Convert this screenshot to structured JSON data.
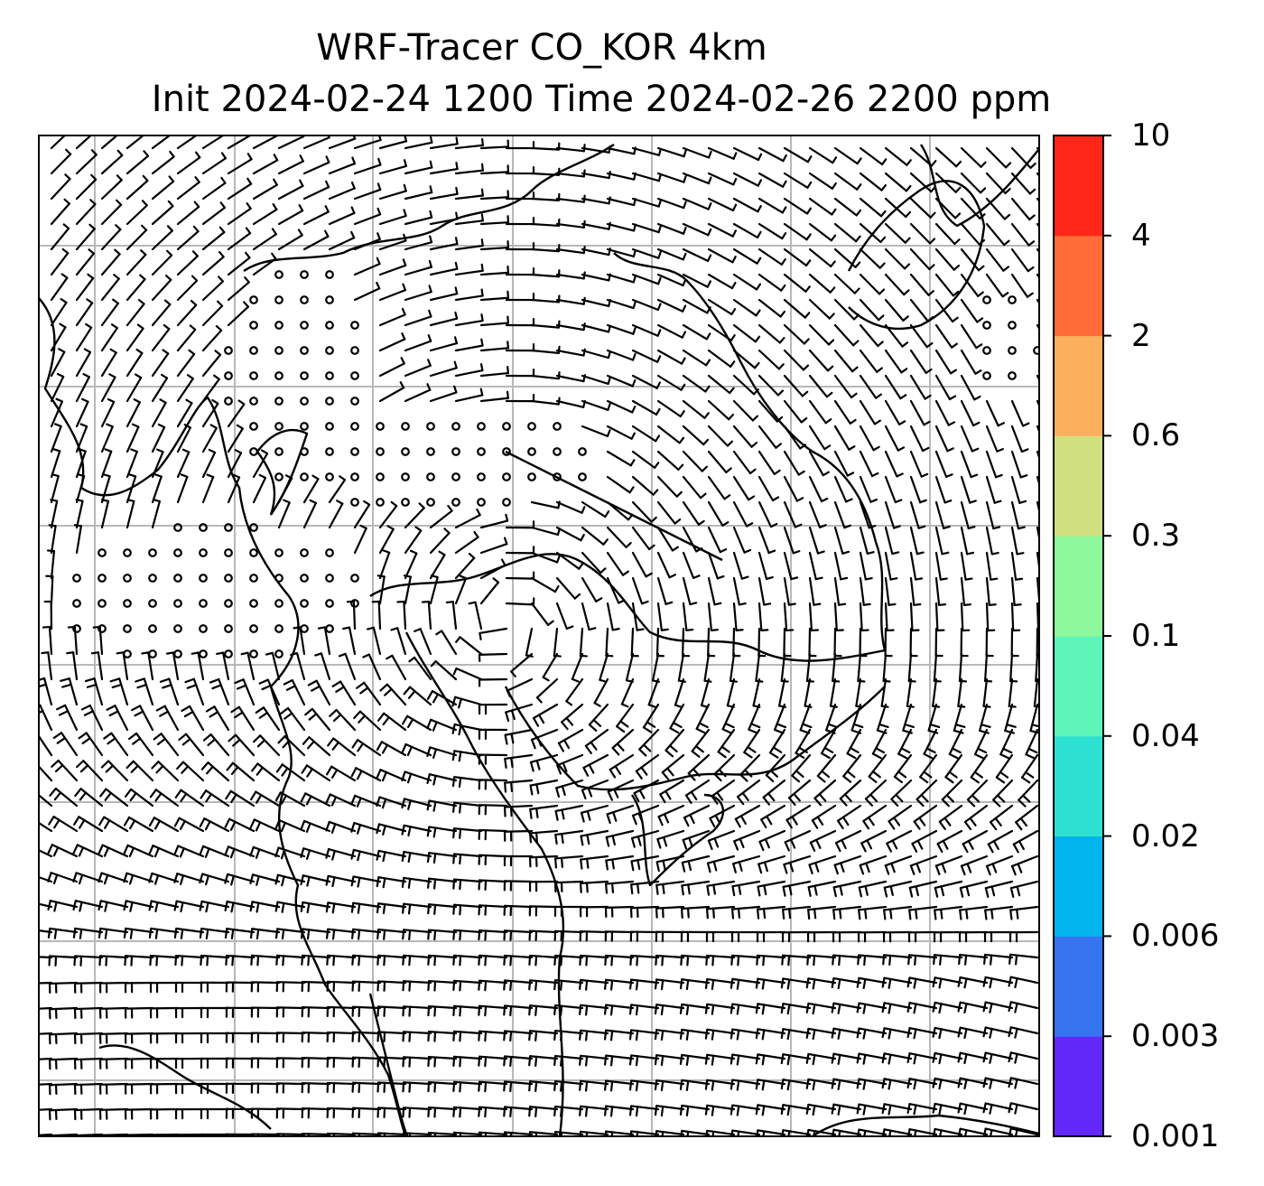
{
  "title": {
    "line1": "WRF-Tracer CO_KOR 4km",
    "line2": "Init 2024-02-24 1200 Time 2024-02-26 2200 ppm"
  },
  "colorbar": {
    "levels": [
      "0.001",
      "0.003",
      "0.006",
      "0.02",
      "0.04",
      "0.1",
      "0.3",
      "0.6",
      "2",
      "4",
      "10"
    ],
    "colors": [
      "#6228f8",
      "#3674f0",
      "#02b4ec",
      "#2ee0d2",
      "#5ef6b8",
      "#8ef89c",
      "#d0e080",
      "#fcb05e",
      "#ff6c38",
      "#ff2818"
    ]
  },
  "map": {
    "background": "#ffffff",
    "gridline_color": "#b8b8b8",
    "coastline_color": "#000000",
    "layers": [
      "coastlines",
      "gridlines",
      "wind-barbs",
      "calm-circles"
    ]
  }
}
